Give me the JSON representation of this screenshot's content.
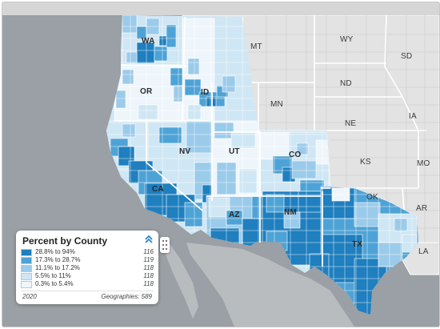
{
  "map": {
    "state_labels": [
      "WA",
      "OR",
      "ID",
      "MT",
      "WY",
      "ND",
      "SD",
      "MN",
      "NE",
      "IA",
      "CA",
      "NV",
      "UT",
      "CO",
      "KS",
      "MO",
      "AZ",
      "NM",
      "OK",
      "AR",
      "TX",
      "LA"
    ],
    "colors": {
      "background": "#9aa0a5",
      "land_outside": "#e3e3e3",
      "border": "#ffffff",
      "class_1": "#1f7fbf",
      "class_2": "#4ea3d6",
      "class_3": "#9bcbea",
      "class_4": "#cfe6f4",
      "class_5": "#eef6fc"
    }
  },
  "legend": {
    "title": "Percent by County",
    "toggle_icon": "chevron-double-up-icon",
    "rows": [
      {
        "label": "28.8% to 94%",
        "count": "116",
        "color": "#1f7fbf"
      },
      {
        "label": "17.3% to 28.7%",
        "count": "119",
        "color": "#4ea3d6"
      },
      {
        "label": "11.1% to 17.2%",
        "count": "118",
        "color": "#9bcbea"
      },
      {
        "label": "5.5% to 11%",
        "count": "118",
        "color": "#cfe6f4"
      },
      {
        "label": "0.3% to 5.4%",
        "count": "118",
        "color": "#eef6fc"
      }
    ],
    "year": "2020",
    "geographies": "Geographies: 589"
  },
  "drag_handle_icon": "drag-handle-icon"
}
